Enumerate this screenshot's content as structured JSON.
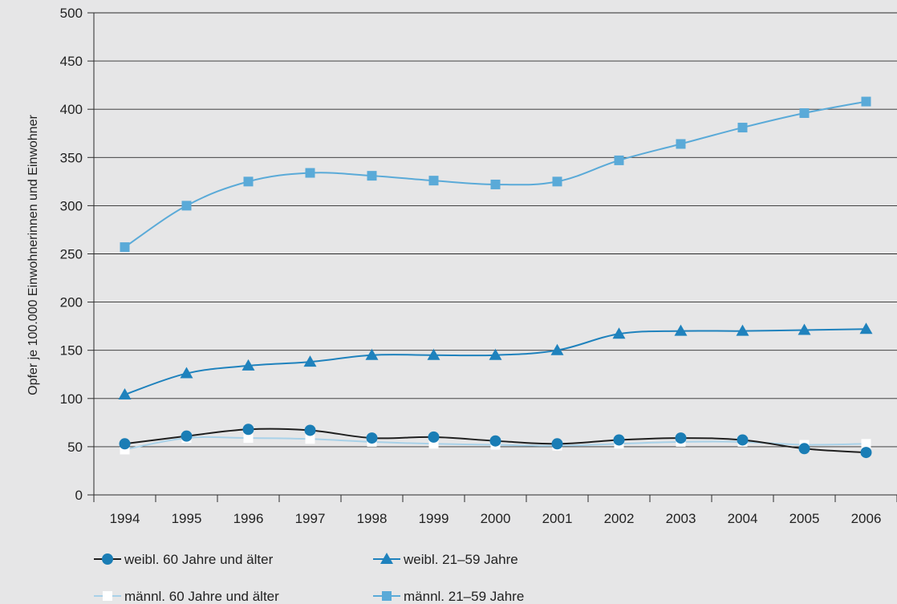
{
  "chart_data": {
    "type": "line",
    "ylabel": "Opfer je 100.000 Einwohnerinnen und Einwohner",
    "xlabel": "",
    "ylim": [
      0,
      500
    ],
    "yticks": [
      0,
      50,
      100,
      150,
      200,
      250,
      300,
      350,
      400,
      450,
      500
    ],
    "categories": [
      "1994",
      "1995",
      "1996",
      "1997",
      "1998",
      "1999",
      "2000",
      "2001",
      "2002",
      "2003",
      "2004",
      "2005",
      "2006"
    ],
    "grid": "horizontal",
    "legend": "bottom",
    "series": [
      {
        "name": "weibl. 60 Jahre und älter",
        "color": "#1f1f1f",
        "marker_color": "#1a7db5",
        "marker": "circle",
        "values": [
          53,
          61,
          68,
          67,
          59,
          60,
          56,
          53,
          57,
          59,
          57,
          48,
          44
        ]
      },
      {
        "name": "weibl. 21–59 Jahre",
        "color": "#1f82bd",
        "marker_color": "#1f82bd",
        "marker": "triangle",
        "values": [
          104,
          126,
          134,
          138,
          145,
          145,
          145,
          150,
          167,
          170,
          170,
          171,
          172
        ]
      },
      {
        "name": "männl. 60 Jahre und älter",
        "color": "#a8d1e8",
        "marker_color": "#ffffff",
        "marker": "square",
        "values": [
          47,
          59,
          59,
          58,
          55,
          53,
          52,
          51,
          53,
          55,
          55,
          52,
          53
        ]
      },
      {
        "name": "männl. 21–59 Jahre",
        "color": "#5aaad8",
        "marker_color": "#5aaad8",
        "marker": "square",
        "values": [
          257,
          300,
          325,
          334,
          331,
          326,
          322,
          325,
          347,
          364,
          381,
          396,
          408
        ]
      }
    ]
  }
}
